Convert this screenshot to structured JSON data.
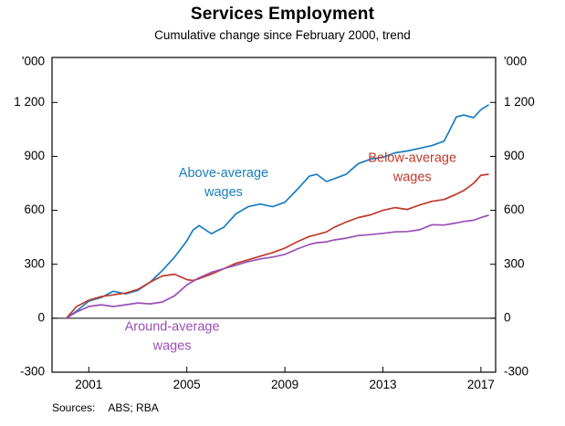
{
  "header": {
    "title": "Services Employment",
    "subtitle": "Cumulative change since February 2000, trend"
  },
  "footer": {
    "sources_label": "Sources:",
    "sources_value": "ABS; RBA"
  },
  "chart_data": {
    "type": "line",
    "title": "Services Employment",
    "subtitle": "Cumulative change since February 2000, trend",
    "unit_label": "'000",
    "xlabel": "",
    "ylabel": "'000",
    "grid": false,
    "zero_line": true,
    "legend_position": "inline-annotations",
    "xlim": [
      1999.5,
      2017.6
    ],
    "ylim": [
      -300,
      1450
    ],
    "x_ticks": [
      {
        "value": 2001,
        "label": "2001"
      },
      {
        "value": 2005,
        "label": "2005"
      },
      {
        "value": 2009,
        "label": "2009"
      },
      {
        "value": 2013,
        "label": "2013"
      },
      {
        "value": 2017,
        "label": "2017"
      }
    ],
    "y_ticks": [
      {
        "value": -300,
        "label": "-300"
      },
      {
        "value": 0,
        "label": "0"
      },
      {
        "value": 300,
        "label": "300"
      },
      {
        "value": 600,
        "label": "600"
      },
      {
        "value": 900,
        "label": "900"
      },
      {
        "value": 1200,
        "label": "1 200"
      }
    ],
    "x": [
      2000.08,
      2000.5,
      2001.0,
      2001.5,
      2002.0,
      2002.5,
      2003.0,
      2003.5,
      2004.0,
      2004.5,
      2005.0,
      2005.25,
      2005.5,
      2006.0,
      2006.5,
      2007.0,
      2007.5,
      2008.0,
      2008.5,
      2009.0,
      2009.5,
      2010.0,
      2010.3,
      2010.7,
      2011.0,
      2011.5,
      2012.0,
      2012.5,
      2013.0,
      2013.5,
      2014.0,
      2014.5,
      2015.0,
      2015.5,
      2016.0,
      2016.3,
      2016.7,
      2017.0,
      2017.3
    ],
    "series": [
      {
        "name": "Above-average wages",
        "color": "#1a7dc0",
        "label_lines": [
          "Above-average",
          "wages"
        ],
        "label_x": 2006.5,
        "label_y": 760,
        "values": [
          0,
          40,
          95,
          115,
          150,
          135,
          155,
          200,
          265,
          340,
          430,
          490,
          515,
          470,
          505,
          580,
          620,
          635,
          620,
          645,
          715,
          790,
          800,
          760,
          775,
          800,
          860,
          885,
          895,
          920,
          930,
          945,
          960,
          985,
          1120,
          1130,
          1115,
          1160,
          1185
        ]
      },
      {
        "name": "Below-average wages",
        "color": "#bf3a2b",
        "label_lines": [
          "Below-average",
          "wages"
        ],
        "label_x": 2014.2,
        "label_y": 845,
        "values": [
          0,
          65,
          100,
          120,
          130,
          140,
          160,
          200,
          235,
          245,
          215,
          210,
          220,
          245,
          275,
          305,
          325,
          345,
          365,
          390,
          425,
          455,
          465,
          480,
          505,
          535,
          560,
          575,
          600,
          615,
          605,
          630,
          650,
          660,
          690,
          710,
          750,
          795,
          800
        ]
      },
      {
        "name": "Around-average wages",
        "color": "#9950b4",
        "label_lines": [
          "Around-average",
          "wages"
        ],
        "label_x": 2004.4,
        "label_y": -95,
        "values": [
          0,
          35,
          65,
          75,
          65,
          75,
          85,
          80,
          90,
          125,
          185,
          205,
          225,
          255,
          275,
          295,
          315,
          330,
          340,
          355,
          385,
          410,
          420,
          425,
          435,
          445,
          460,
          465,
          472,
          480,
          482,
          492,
          520,
          518,
          530,
          538,
          545,
          560,
          572
        ]
      }
    ],
    "source": "ABS; RBA"
  }
}
